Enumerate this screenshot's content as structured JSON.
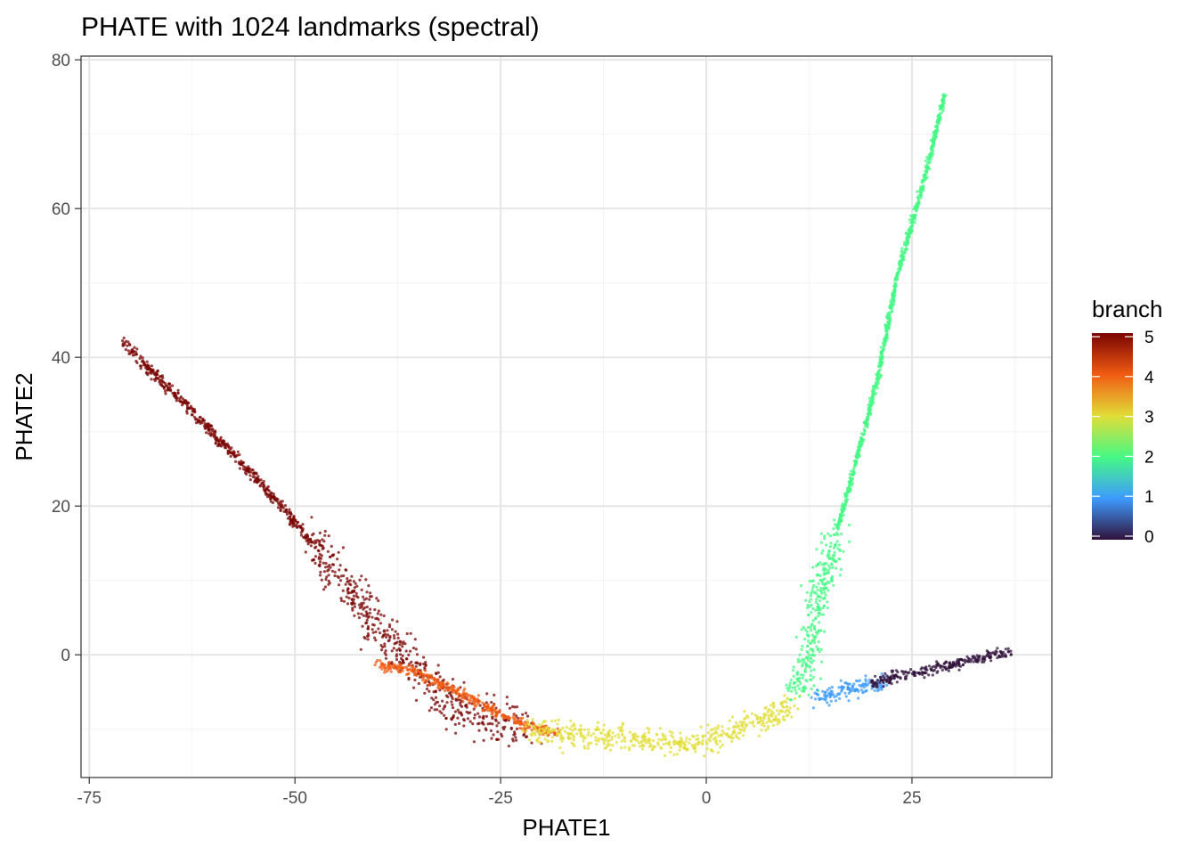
{
  "chart_data": {
    "type": "scatter",
    "title": "PHATE with 1024 landmarks (spectral)",
    "xlabel": "PHATE1",
    "ylabel": "PHATE2",
    "xlim": [
      -76,
      42
    ],
    "ylim": [
      -16.5,
      80.5
    ],
    "xticks": [
      -75,
      -50,
      -25,
      0,
      25
    ],
    "xtick_labels": [
      "-75",
      "-50",
      "-25",
      "0",
      "25"
    ],
    "yticks": [
      0,
      20,
      40,
      60,
      80
    ],
    "ytick_labels": [
      "0",
      "20",
      "40",
      "60",
      "80"
    ],
    "grid": true,
    "legend": {
      "title": "branch",
      "placement": "right",
      "type": "colorbar",
      "min": 0,
      "max": 5,
      "ticks": [
        0,
        1,
        2,
        3,
        4,
        5
      ],
      "tick_labels": [
        "0",
        "1",
        "2",
        "3",
        "4",
        "5"
      ],
      "colors": [
        "#30123b",
        "#3e9bfe",
        "#46f884",
        "#e1dd37",
        "#f05b12",
        "#7a0403"
      ]
    },
    "series": [
      {
        "branch": 5,
        "color": "#7a0403",
        "points": [
          [
            -71,
            42
          ],
          [
            -65,
            35.5
          ],
          [
            -58,
            27.5
          ],
          [
            -52,
            20.5
          ],
          [
            -48,
            15
          ],
          [
            -44,
            9.5
          ],
          [
            -40,
            4
          ],
          [
            -36,
            -1
          ],
          [
            -33,
            -4.5
          ],
          [
            -30,
            -7
          ],
          [
            -26,
            -8.8
          ],
          [
            -22,
            -10
          ]
        ]
      },
      {
        "branch": 4,
        "color": "#f05b12",
        "points": [
          [
            -40,
            -1.2
          ],
          [
            -35,
            -2.5
          ],
          [
            -30,
            -5
          ],
          [
            -26,
            -7.5
          ],
          [
            -22,
            -9.5
          ],
          [
            -18,
            -10.5
          ]
        ]
      },
      {
        "branch": 3,
        "color": "#e1dd37",
        "points": [
          [
            -22,
            -10
          ],
          [
            -17,
            -10.8
          ],
          [
            -12,
            -11
          ],
          [
            -7,
            -11.5
          ],
          [
            -3,
            -12
          ],
          [
            0,
            -11.8
          ],
          [
            2,
            -11
          ],
          [
            5,
            -9.5
          ],
          [
            8,
            -8
          ],
          [
            11,
            -6.5
          ]
        ]
      },
      {
        "branch": 2,
        "color": "#46f884",
        "points": [
          [
            10,
            -5
          ],
          [
            12,
            -3
          ],
          [
            12.5,
            0
          ],
          [
            13,
            5
          ],
          [
            14,
            10
          ],
          [
            16,
            17
          ],
          [
            18,
            25
          ],
          [
            21,
            38
          ],
          [
            23,
            50
          ],
          [
            25,
            58
          ],
          [
            27,
            66
          ],
          [
            29,
            75.5
          ]
        ]
      },
      {
        "branch": 1,
        "color": "#3e9bfe",
        "points": [
          [
            13,
            -6
          ],
          [
            16,
            -5
          ],
          [
            19,
            -4.2
          ],
          [
            22,
            -3.8
          ]
        ]
      },
      {
        "branch": 0,
        "color": "#30123b",
        "points": [
          [
            20,
            -3.8
          ],
          [
            25,
            -2.5
          ],
          [
            30,
            -1.3
          ],
          [
            34,
            -0.3
          ],
          [
            37,
            0.3
          ]
        ]
      }
    ]
  }
}
